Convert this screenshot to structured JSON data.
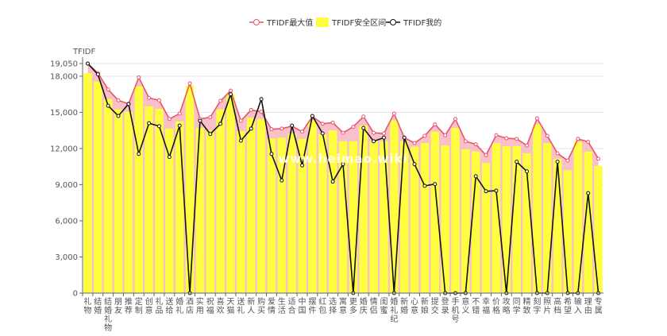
{
  "chart_data": {
    "type": "bar+line",
    "title": "",
    "ylabel": "TFIDF",
    "xlabel": "",
    "ylim": [
      0,
      19050
    ],
    "yticks": [
      0,
      3000,
      6000,
      9000,
      12000,
      15000,
      18000,
      19050
    ],
    "ytick_labels": [
      "0",
      "3,000",
      "6,000",
      "9,000",
      "12,000",
      "15,000",
      "18,000",
      "19,050"
    ],
    "grid": true,
    "legend_position": "top-center",
    "watermark": "www.heimao.wiki",
    "categories": [
      "礼物",
      "结婚",
      "结婚礼物",
      "朋友",
      "推荐",
      "定制",
      "创意",
      "礼品",
      "送给",
      "婚礼",
      "酒店",
      "实用",
      "祝福",
      "喜欢",
      "天猫",
      "送礼",
      "新人",
      "购买",
      "爱情",
      "生活",
      "适合",
      "中国",
      "摆件",
      "红包",
      "选择",
      "寓意",
      "更多",
      "婚庆",
      "情侣",
      "闺蜜",
      "婚礼纪",
      "新婚",
      "心意",
      "新娘",
      "提交",
      "登录",
      "手机号",
      "意义",
      "不错",
      "幸福",
      "价格",
      "攻略",
      "同学",
      "精致",
      "刻字",
      "照片",
      "高档",
      "希望",
      "输入",
      "理由",
      "专属"
    ],
    "series": [
      {
        "name": "TFIDF最大值",
        "type": "line",
        "color": "#e8546b",
        "values": [
          19050,
          18260,
          16900,
          16000,
          15700,
          17900,
          16200,
          16000,
          14450,
          14900,
          17400,
          14450,
          14600,
          15950,
          16800,
          14300,
          15200,
          15050,
          13600,
          13650,
          13850,
          13400,
          14650,
          14050,
          14150,
          13300,
          13800,
          14650,
          13300,
          13250,
          14900,
          12900,
          12450,
          13050,
          14000,
          13100,
          14450,
          12600,
          12350,
          11450,
          13100,
          12850,
          12800,
          12250,
          14500,
          13050,
          11600,
          11000,
          12800,
          12550,
          11150
        ]
      },
      {
        "name": "TFIDF安全区间",
        "type": "bar",
        "color": "#ffff40",
        "values": [
          18260,
          17550,
          16100,
          15250,
          15050,
          17150,
          15500,
          15300,
          13650,
          14250,
          17200,
          13700,
          13500,
          15250,
          16500,
          13450,
          14550,
          14450,
          12850,
          12900,
          13250,
          12800,
          14350,
          13200,
          13500,
          12600,
          12600,
          13900,
          12600,
          12600,
          14350,
          12600,
          12150,
          12450,
          13400,
          12250,
          13700,
          11950,
          11750,
          10800,
          12450,
          12200,
          12200,
          11600,
          14000,
          12450,
          11150,
          10200,
          12550,
          11750,
          10550
        ]
      },
      {
        "name": "TFIDF我的",
        "type": "line",
        "color": "#111111",
        "values": [
          19050,
          18150,
          15550,
          14700,
          15700,
          11550,
          14100,
          13850,
          11300,
          13900,
          0,
          14300,
          13200,
          14050,
          16500,
          12650,
          13650,
          16100,
          11550,
          9350,
          13900,
          10600,
          14700,
          13250,
          9250,
          10700,
          0,
          13700,
          12600,
          12900,
          0,
          12900,
          10700,
          8900,
          9050,
          0,
          0,
          0,
          9700,
          8450,
          8500,
          0,
          10900,
          10100,
          0,
          0,
          10900,
          0,
          0,
          8300,
          0
        ]
      }
    ]
  }
}
